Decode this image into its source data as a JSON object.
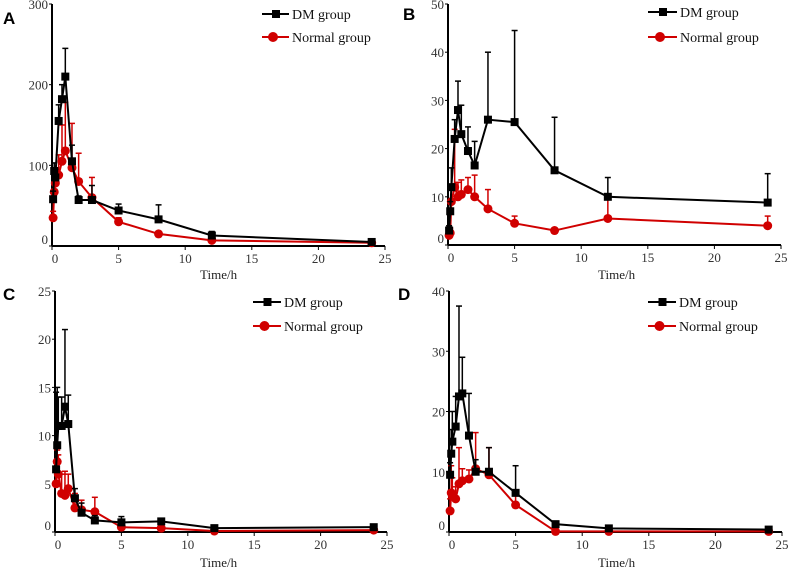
{
  "chart_data": [
    {
      "type": "line",
      "panel": "A",
      "xlabel": "Time/h",
      "ylabel": "",
      "xlim": [
        0,
        25
      ],
      "ylim": [
        0,
        300
      ],
      "xticks": [
        0,
        5,
        10,
        15,
        20,
        25
      ],
      "yticks": [
        0,
        100,
        200,
        300
      ],
      "x": [
        0.083,
        0.167,
        0.25,
        0.5,
        0.75,
        1,
        1.5,
        2,
        3,
        5,
        8,
        12,
        24
      ],
      "series": [
        {
          "name": "DM group",
          "color": "#000000",
          "marker": "square",
          "values": [
            58,
            93,
            85,
            155,
            182,
            210,
            105,
            57,
            57,
            44,
            33,
            13,
            5
          ],
          "err": [
            10,
            10,
            10,
            20,
            18,
            35,
            20,
            5,
            18,
            8,
            18,
            5,
            2
          ]
        },
        {
          "name": "Normal group",
          "color": "#d00000",
          "marker": "circle",
          "values": [
            35,
            67,
            78,
            88,
            105,
            118,
            97,
            80,
            60,
            30,
            15,
            7,
            4
          ],
          "err": [
            8,
            10,
            10,
            25,
            45,
            60,
            55,
            35,
            25,
            5,
            2,
            1,
            1
          ]
        }
      ]
    },
    {
      "type": "line",
      "panel": "B",
      "xlabel": "Time/h",
      "ylabel": "",
      "xlim": [
        0,
        25
      ],
      "ylim": [
        0,
        50
      ],
      "xticks": [
        0,
        5,
        10,
        15,
        20,
        25
      ],
      "yticks": [
        0,
        10,
        20,
        30,
        40,
        50
      ],
      "x": [
        0.083,
        0.167,
        0.25,
        0.5,
        0.75,
        1,
        1.5,
        2,
        3,
        5,
        8,
        12,
        24
      ],
      "series": [
        {
          "name": "DM group",
          "color": "#000000",
          "marker": "square",
          "values": [
            3,
            7,
            12,
            22,
            28,
            23,
            19.5,
            16.5,
            26,
            25.5,
            15.5,
            10,
            8.8
          ],
          "err": [
            1,
            2,
            4,
            4,
            6,
            6,
            5,
            5,
            14,
            19,
            11,
            4,
            6
          ]
        },
        {
          "name": "Normal group",
          "color": "#d00000",
          "marker": "circle",
          "values": [
            2,
            2.5,
            9,
            12,
            10,
            10.5,
            11.5,
            10,
            7.5,
            4.5,
            3,
            5.5,
            4
          ],
          "err": [
            1,
            1,
            3,
            12,
            3,
            3,
            2.5,
            4.5,
            4,
            1.5,
            0.3,
            4,
            2
          ]
        }
      ]
    },
    {
      "type": "line",
      "panel": "C",
      "xlabel": "Time/h",
      "ylabel": "",
      "xlim": [
        0,
        25
      ],
      "ylim": [
        0,
        25
      ],
      "xticks": [
        0,
        5,
        10,
        15,
        20,
        25
      ],
      "yticks": [
        0,
        5,
        10,
        15,
        20,
        25
      ],
      "x": [
        0.083,
        0.167,
        0.25,
        0.5,
        0.75,
        1,
        1.5,
        2,
        3,
        5,
        8,
        12,
        24
      ],
      "series": [
        {
          "name": "DM group",
          "color": "#000000",
          "marker": "square",
          "values": [
            6.5,
            9,
            11,
            11,
            13,
            11.2,
            3.5,
            2,
            1.2,
            1,
            1.1,
            0.4,
            0.5
          ],
          "err": [
            8,
            6,
            3,
            3,
            8,
            3,
            1,
            1,
            0.5,
            0.6,
            0.3,
            0.1,
            0.1
          ]
        },
        {
          "name": "Normal group",
          "color": "#d00000",
          "marker": "circle",
          "values": [
            5,
            7.3,
            6,
            4,
            3.8,
            4.5,
            2.5,
            2.3,
            2.1,
            0.5,
            0.4,
            0.1,
            0.2
          ],
          "err": [
            1.5,
            1.2,
            2,
            2,
            2.5,
            1.5,
            1.5,
            1,
            1.5,
            0.2,
            0.1,
            0.1,
            0.1
          ]
        }
      ]
    },
    {
      "type": "line",
      "panel": "D",
      "xlabel": "Time/h",
      "ylabel": "",
      "xlim": [
        0,
        25
      ],
      "ylim": [
        0,
        40
      ],
      "xticks": [
        0,
        5,
        10,
        15,
        20,
        25
      ],
      "yticks": [
        0,
        10,
        20,
        30,
        40
      ],
      "x": [
        0.083,
        0.167,
        0.25,
        0.5,
        0.75,
        1,
        1.5,
        2,
        3,
        5,
        8,
        12,
        24
      ],
      "series": [
        {
          "name": "DM group",
          "color": "#000000",
          "marker": "square",
          "values": [
            9.5,
            13,
            15,
            17.5,
            22.5,
            23,
            16,
            10,
            10,
            6.5,
            1.3,
            0.6,
            0.4
          ],
          "err": [
            2,
            4,
            5,
            5,
            15,
            6,
            7,
            2,
            4,
            4.5,
            0.3,
            0.2,
            0.2
          ]
        },
        {
          "name": "Normal group",
          "color": "#d00000",
          "marker": "circle",
          "values": [
            3.5,
            6.5,
            6,
            5.5,
            8,
            8.5,
            8.8,
            10.5,
            9.5,
            4.5,
            0.1,
            0.1,
            0.1
          ],
          "err": [
            2,
            4.5,
            3,
            2,
            6,
            2,
            1.5,
            6,
            4.5,
            1.5,
            0.1,
            0.1,
            0.1
          ]
        }
      ]
    }
  ]
}
